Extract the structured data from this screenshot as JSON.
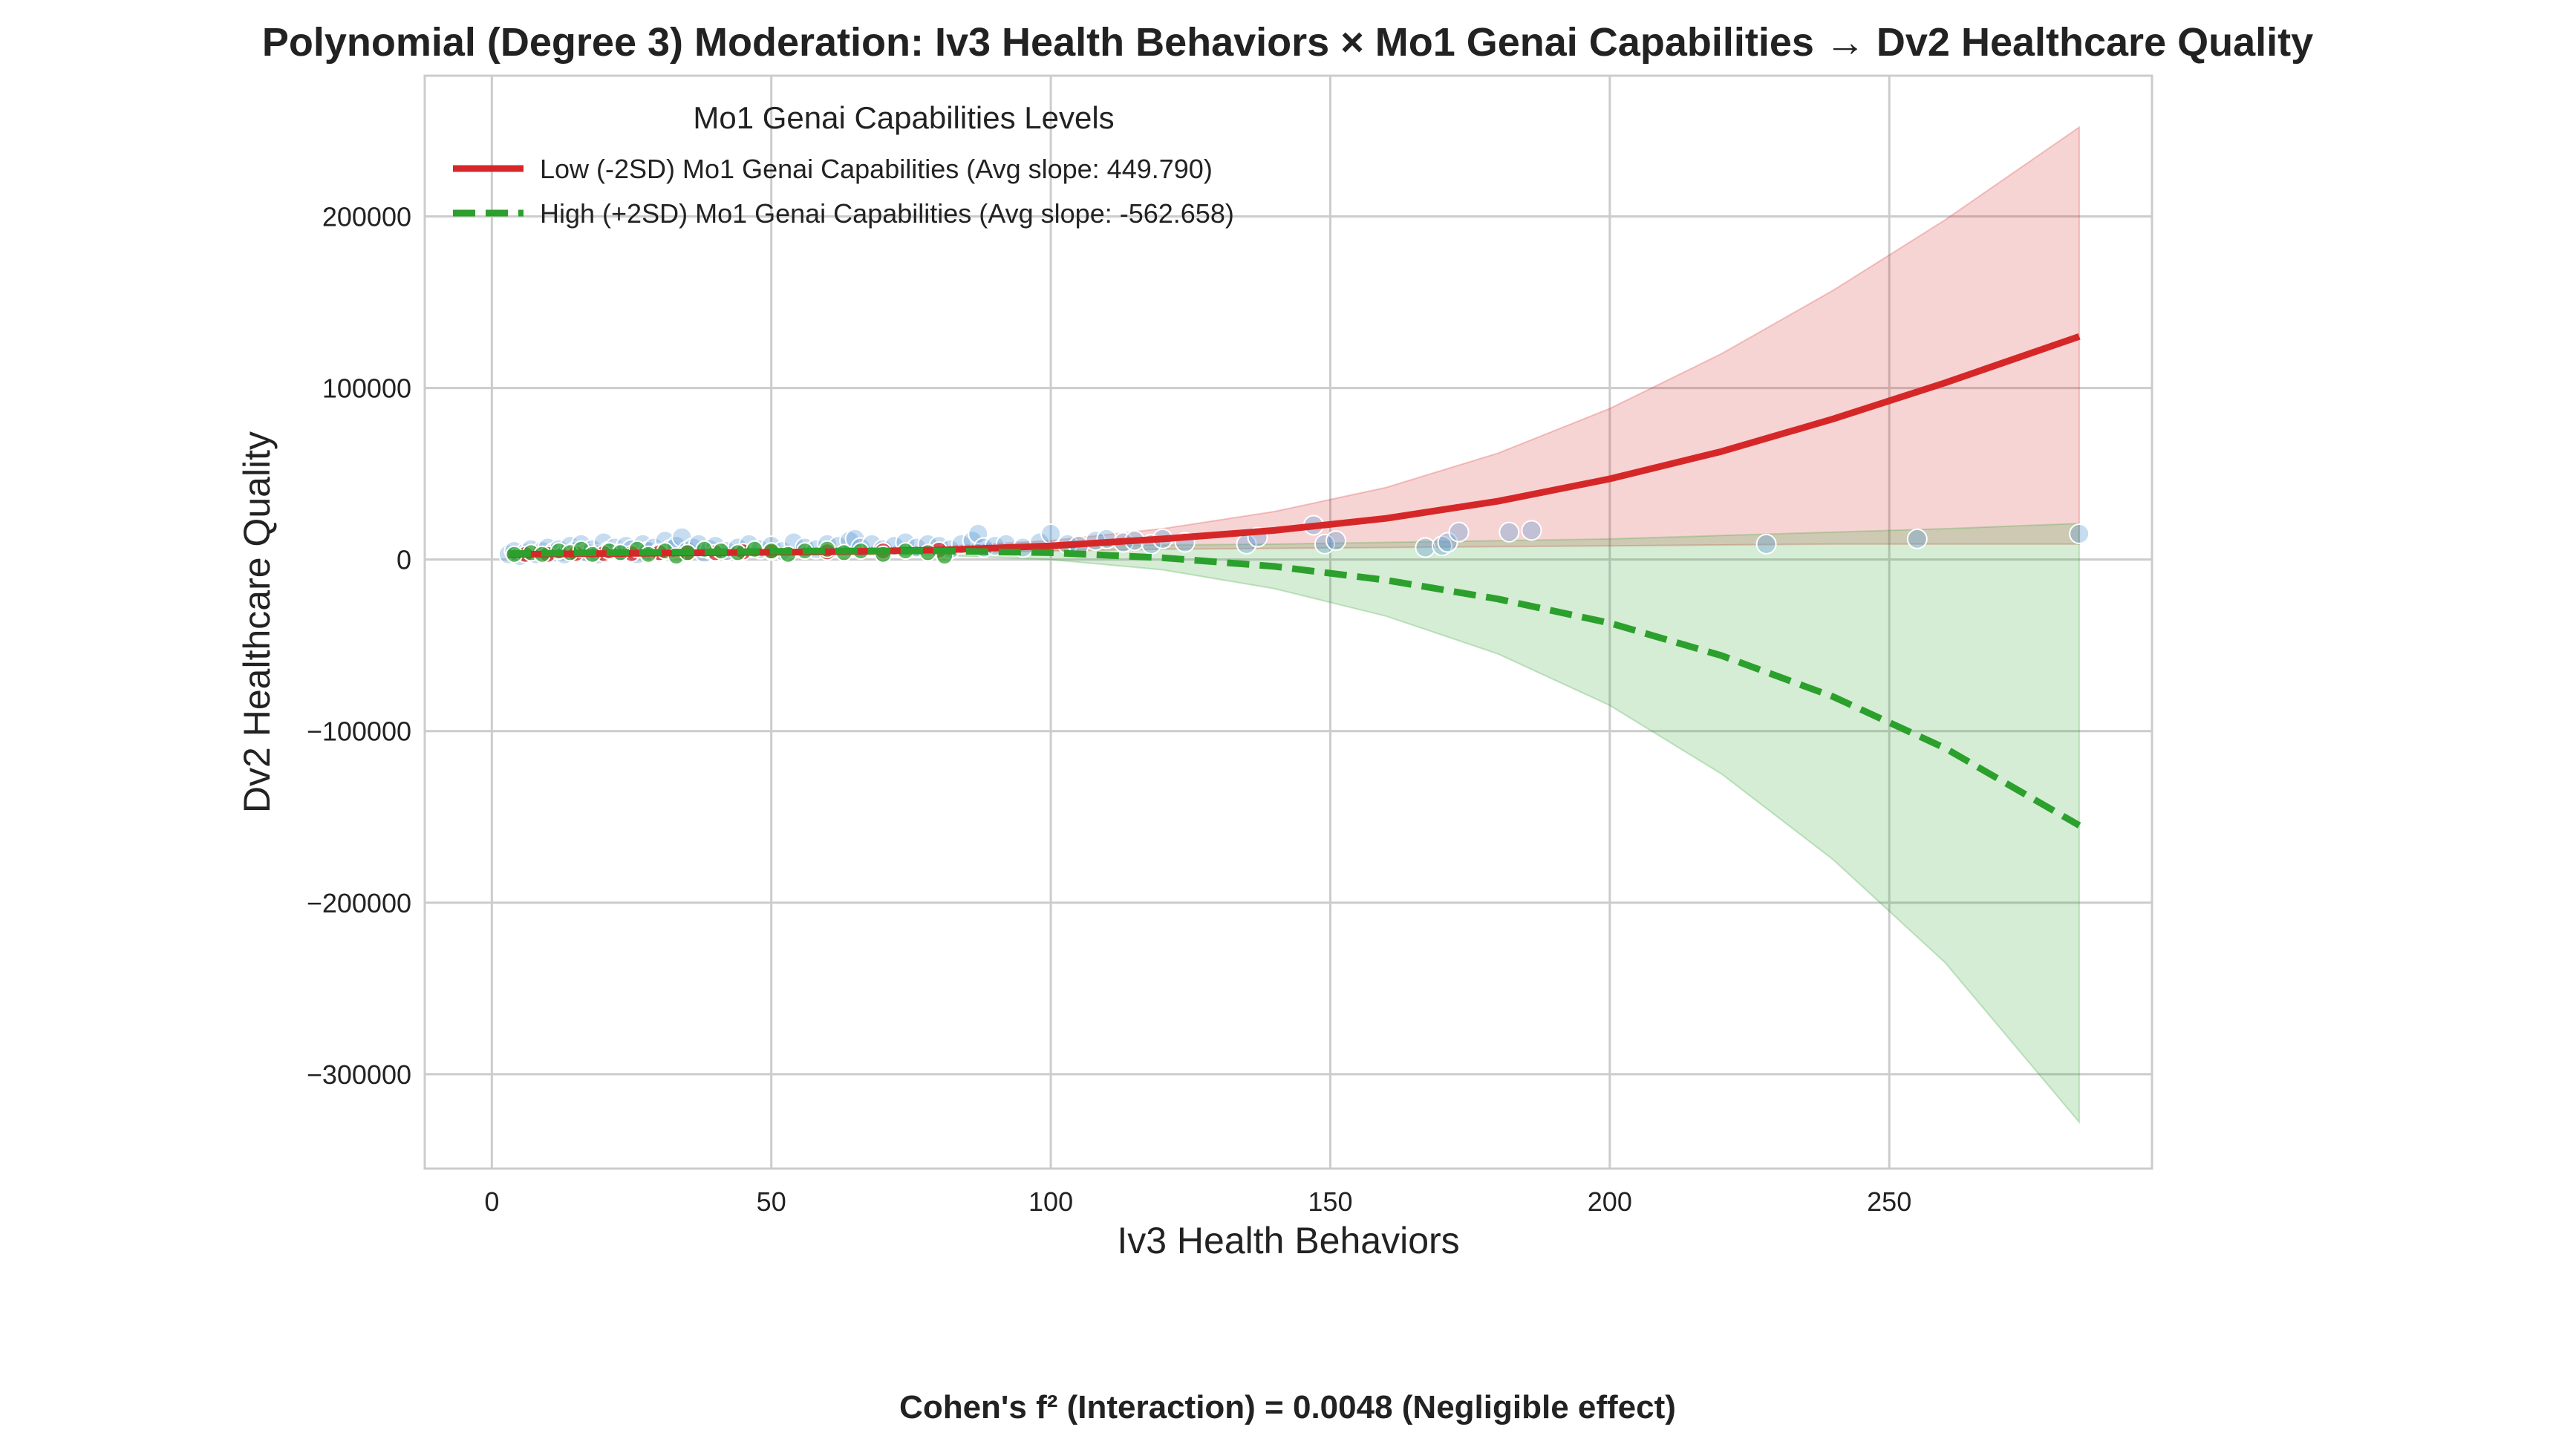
{
  "chart_data": {
    "type": "line",
    "title": "Polynomial (Degree 3) Moderation: Iv3 Health Behaviors × Mo1 Genai Capabilities → Dv2 Healthcare Quality",
    "xlabel": "Iv3 Health Behaviors",
    "ylabel": "Dv2 Healthcare Quality",
    "xlim": [
      -12,
      297
    ],
    "ylim": [
      -355000,
      282000
    ],
    "xticks": [
      0,
      50,
      100,
      150,
      200,
      250
    ],
    "yticks": [
      -300000,
      -200000,
      -100000,
      0,
      100000,
      200000
    ],
    "xtick_labels": [
      "0",
      "50",
      "100",
      "150",
      "200",
      "250"
    ],
    "ytick_labels": [
      "−300000",
      "−200000",
      "−100000",
      "0",
      "100000",
      "200000"
    ],
    "grid": true,
    "legend": {
      "title": "Mo1 Genai Capabilities Levels",
      "placement": "top-left",
      "entries": [
        "Low (-2SD) Mo1 Genai Capabilities (Avg slope: 449.790)",
        "High (+2SD) Mo1 Genai Capabilities (Avg slope: -562.658)"
      ]
    },
    "series": [
      {
        "name": "Low (-2SD) Mo1 Genai Capabilities (Avg slope: 449.790)",
        "style": "solid",
        "color": "#d62728",
        "x": [
          3,
          20,
          40,
          60,
          80,
          100,
          120,
          140,
          160,
          180,
          200,
          220,
          240,
          260,
          284
        ],
        "y": [
          3000,
          3500,
          4000,
          4500,
          5500,
          8000,
          12000,
          17000,
          24000,
          34000,
          47000,
          63000,
          82000,
          103000,
          130000
        ],
        "ci_lower": [
          1000,
          1500,
          2000,
          3000,
          4000,
          5000,
          6000,
          6500,
          7000,
          7500,
          8000,
          8500,
          9000,
          9000,
          9000
        ],
        "ci_upper": [
          5000,
          5500,
          6000,
          6500,
          7500,
          11000,
          18000,
          28000,
          42000,
          62000,
          88000,
          120000,
          157000,
          198000,
          252000
        ]
      },
      {
        "name": "High (+2SD) Mo1 Genai Capabilities (Avg slope: -562.658)",
        "style": "dashed",
        "color": "#2ca02c",
        "x": [
          3,
          20,
          40,
          60,
          80,
          100,
          120,
          140,
          160,
          180,
          200,
          220,
          240,
          260,
          284
        ],
        "y": [
          3500,
          4000,
          4500,
          5000,
          5000,
          4000,
          1000,
          -4000,
          -12000,
          -23000,
          -37000,
          -56000,
          -80000,
          -110000,
          -155000
        ],
        "ci_lower": [
          1500,
          2000,
          2500,
          3000,
          2500,
          0,
          -6000,
          -17000,
          -33000,
          -55000,
          -85000,
          -125000,
          -175000,
          -235000,
          -328000
        ],
        "ci_upper": [
          5500,
          6000,
          6500,
          7000,
          7500,
          8000,
          8500,
          9000,
          10000,
          11000,
          12000,
          14000,
          16000,
          18000,
          21000
        ]
      }
    ],
    "scatter": {
      "color": "#5b9bd5",
      "x": [
        3,
        4,
        5,
        6,
        7,
        8,
        9,
        10,
        11,
        12,
        13,
        14,
        15,
        16,
        17,
        18,
        19,
        20,
        21,
        22,
        23,
        24,
        25,
        26,
        27,
        28,
        29,
        30,
        31,
        32,
        33,
        34,
        35,
        36,
        37,
        38,
        39,
        40,
        42,
        44,
        46,
        48,
        50,
        52,
        54,
        56,
        58,
        60,
        62,
        64,
        65,
        66,
        68,
        70,
        72,
        74,
        76,
        78,
        80,
        82,
        84,
        86,
        87,
        88,
        90,
        92,
        95,
        98,
        100,
        103,
        105,
        108,
        110,
        113,
        115,
        118,
        120,
        124,
        135,
        137,
        147,
        149,
        151,
        167,
        170,
        171,
        173,
        182,
        186,
        228,
        255,
        284
      ],
      "y": [
        3000,
        5000,
        2000,
        4000,
        6000,
        3000,
        5000,
        7000,
        4000,
        6000,
        3000,
        8000,
        5000,
        9000,
        4000,
        6000,
        3000,
        10000,
        5000,
        7000,
        4000,
        8000,
        6000,
        3000,
        9000,
        5000,
        7000,
        4000,
        11000,
        6000,
        8000,
        13000,
        5000,
        7000,
        9000,
        4000,
        6000,
        8000,
        5000,
        7000,
        9000,
        6000,
        8000,
        5000,
        10000,
        7000,
        6000,
        9000,
        8000,
        11000,
        12000,
        7000,
        9000,
        6000,
        8000,
        10000,
        7000,
        9000,
        8000,
        6000,
        9000,
        11000,
        15000,
        7000,
        8000,
        9000,
        7000,
        10000,
        15000,
        9000,
        8000,
        11000,
        12000,
        10000,
        11000,
        9000,
        12000,
        10000,
        9000,
        13000,
        20000,
        9000,
        11000,
        7000,
        8000,
        10000,
        16000,
        16000,
        17000,
        9000,
        12000,
        15000
      ]
    },
    "scatter_low": {
      "color": "#d62728",
      "x": [
        6,
        10,
        15,
        20,
        25,
        30,
        35,
        40,
        45,
        50,
        60,
        70,
        80
      ],
      "y": [
        3000,
        3000,
        3500,
        3500,
        3500,
        4000,
        4000,
        4000,
        4500,
        4500,
        4500,
        5000,
        5500
      ]
    },
    "scatter_high": {
      "color": "#2ca02c",
      "x": [
        4,
        7,
        9,
        12,
        14,
        16,
        18,
        21,
        23,
        26,
        28,
        31,
        33,
        35,
        38,
        41,
        44,
        47,
        50,
        53,
        56,
        60,
        63,
        66,
        70,
        74,
        78,
        81
      ],
      "y": [
        3000,
        4000,
        3000,
        5000,
        4000,
        6000,
        3000,
        5000,
        4000,
        6000,
        3000,
        5000,
        2000,
        4000,
        6000,
        5000,
        4000,
        6000,
        5000,
        3000,
        5000,
        6000,
        4000,
        5000,
        3000,
        5000,
        4000,
        2000
      ]
    }
  },
  "footnote": "Cohen's f² (Interaction) = 0.0048 (Negligible effect)"
}
